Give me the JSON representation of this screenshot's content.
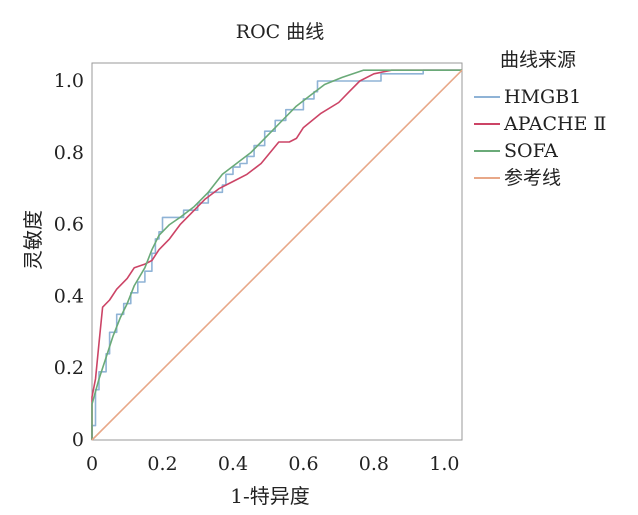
{
  "chart_data": {
    "type": "line",
    "title": "ROC 曲线",
    "xlabel": "1-特异度",
    "ylabel": "灵敏度",
    "xlim": [
      0,
      1.05
    ],
    "ylim": [
      0,
      1.05
    ],
    "xticks": [
      0,
      0.2,
      0.4,
      0.6,
      0.8,
      1.0
    ],
    "xtick_labels": [
      "0",
      "0.2",
      "0.4",
      "0.6",
      "0.8",
      "1.0"
    ],
    "yticks": [
      0,
      0.2,
      0.4,
      0.6,
      0.8,
      1.0
    ],
    "ytick_labels": [
      "0",
      "0.2",
      "0.4",
      "0.6",
      "0.8",
      "1.0"
    ],
    "grid": false,
    "legend": {
      "title": "曲线来源",
      "placement": "right"
    },
    "series": [
      {
        "name": "HMGB1",
        "color": "#8fb3d6",
        "step": true,
        "points": [
          [
            0,
            0
          ],
          [
            0,
            0.04
          ],
          [
            0.01,
            0.09
          ],
          [
            0.01,
            0.14
          ],
          [
            0.02,
            0.19
          ],
          [
            0.04,
            0.24
          ],
          [
            0.05,
            0.3
          ],
          [
            0.07,
            0.35
          ],
          [
            0.09,
            0.38
          ],
          [
            0.11,
            0.41
          ],
          [
            0.13,
            0.44
          ],
          [
            0.15,
            0.47
          ],
          [
            0.17,
            0.52
          ],
          [
            0.18,
            0.56
          ],
          [
            0.19,
            0.58
          ],
          [
            0.2,
            0.62
          ],
          [
            0.25,
            0.62
          ],
          [
            0.26,
            0.64
          ],
          [
            0.3,
            0.66
          ],
          [
            0.33,
            0.69
          ],
          [
            0.37,
            0.71
          ],
          [
            0.38,
            0.74
          ],
          [
            0.4,
            0.76
          ],
          [
            0.42,
            0.77
          ],
          [
            0.44,
            0.79
          ],
          [
            0.46,
            0.82
          ],
          [
            0.49,
            0.86
          ],
          [
            0.52,
            0.89
          ],
          [
            0.55,
            0.92
          ],
          [
            0.6,
            0.95
          ],
          [
            0.63,
            0.97
          ],
          [
            0.64,
            1.0
          ],
          [
            0.8,
            1.0
          ],
          [
            0.82,
            1.02
          ],
          [
            0.93,
            1.02
          ],
          [
            0.94,
            1.03
          ],
          [
            1.05,
            1.03
          ]
        ]
      },
      {
        "name": "APACHE Ⅱ",
        "color": "#cc4466",
        "step": false,
        "points": [
          [
            0,
            0
          ],
          [
            0,
            0.12
          ],
          [
            0.01,
            0.17
          ],
          [
            0.02,
            0.27
          ],
          [
            0.03,
            0.37
          ],
          [
            0.05,
            0.39
          ],
          [
            0.07,
            0.42
          ],
          [
            0.1,
            0.45
          ],
          [
            0.12,
            0.48
          ],
          [
            0.15,
            0.49
          ],
          [
            0.17,
            0.5
          ],
          [
            0.19,
            0.53
          ],
          [
            0.22,
            0.56
          ],
          [
            0.25,
            0.6
          ],
          [
            0.28,
            0.63
          ],
          [
            0.32,
            0.67
          ],
          [
            0.36,
            0.7
          ],
          [
            0.4,
            0.72
          ],
          [
            0.44,
            0.74
          ],
          [
            0.48,
            0.77
          ],
          [
            0.53,
            0.83
          ],
          [
            0.56,
            0.83
          ],
          [
            0.58,
            0.84
          ],
          [
            0.6,
            0.87
          ],
          [
            0.65,
            0.91
          ],
          [
            0.7,
            0.94
          ],
          [
            0.73,
            0.97
          ],
          [
            0.76,
            1.0
          ],
          [
            0.8,
            1.02
          ],
          [
            0.85,
            1.03
          ],
          [
            1.05,
            1.03
          ]
        ]
      },
      {
        "name": "SOFA",
        "color": "#6aaa78",
        "step": false,
        "points": [
          [
            0,
            0
          ],
          [
            0,
            0.1
          ],
          [
            0.02,
            0.17
          ],
          [
            0.04,
            0.23
          ],
          [
            0.06,
            0.29
          ],
          [
            0.08,
            0.34
          ],
          [
            0.1,
            0.38
          ],
          [
            0.12,
            0.43
          ],
          [
            0.15,
            0.48
          ],
          [
            0.17,
            0.53
          ],
          [
            0.19,
            0.57
          ],
          [
            0.22,
            0.6
          ],
          [
            0.25,
            0.62
          ],
          [
            0.29,
            0.65
          ],
          [
            0.33,
            0.69
          ],
          [
            0.37,
            0.74
          ],
          [
            0.41,
            0.77
          ],
          [
            0.45,
            0.8
          ],
          [
            0.49,
            0.84
          ],
          [
            0.53,
            0.88
          ],
          [
            0.58,
            0.93
          ],
          [
            0.62,
            0.96
          ],
          [
            0.66,
            0.99
          ],
          [
            0.71,
            1.01
          ],
          [
            0.77,
            1.03
          ],
          [
            1.05,
            1.03
          ]
        ]
      },
      {
        "name": "参考线",
        "color": "#e8a888",
        "step": false,
        "points": [
          [
            0,
            0
          ],
          [
            1.05,
            1.03
          ]
        ]
      }
    ]
  }
}
